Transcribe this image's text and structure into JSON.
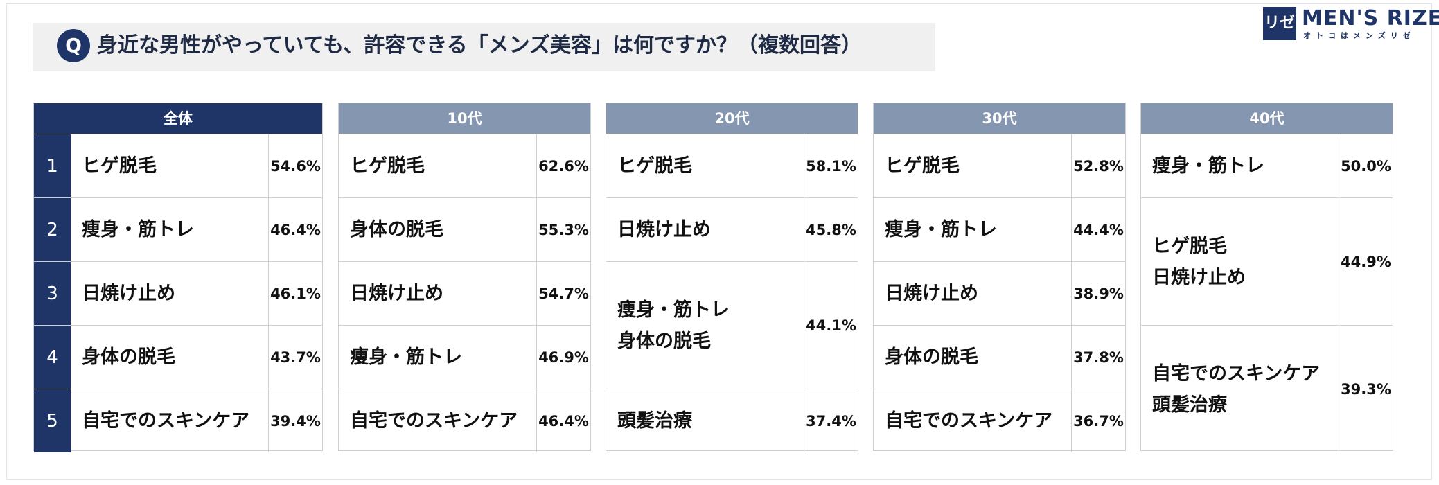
{
  "question": {
    "badge": "Q",
    "text": "身近な男性がやっていても、許容できる「メンズ美容」は何ですか？（複数回答）"
  },
  "logo": {
    "mark": "リゼ",
    "name": "MEN'S RIZE",
    "sub": "オトコはメンズリゼ"
  },
  "panels": [
    {
      "header": "全体",
      "rows": [
        {
          "rank": "1",
          "lines": [
            "ヒゲ脱毛"
          ],
          "pct": "54.6%"
        },
        {
          "rank": "2",
          "lines": [
            "痩身・筋トレ"
          ],
          "pct": "46.4%"
        },
        {
          "rank": "3",
          "lines": [
            "日焼け止め"
          ],
          "pct": "46.1%"
        },
        {
          "rank": "4",
          "lines": [
            "身体の脱毛"
          ],
          "pct": "43.7%"
        },
        {
          "rank": "5",
          "lines": [
            "自宅でのスキンケア"
          ],
          "pct": "39.4%"
        }
      ]
    },
    {
      "header": "10代",
      "rows": [
        {
          "lines": [
            "ヒゲ脱毛"
          ],
          "pct": "62.6%"
        },
        {
          "lines": [
            "身体の脱毛"
          ],
          "pct": "55.3%"
        },
        {
          "lines": [
            "日焼け止め"
          ],
          "pct": "54.7%"
        },
        {
          "lines": [
            "痩身・筋トレ"
          ],
          "pct": "46.9%"
        },
        {
          "lines": [
            "自宅でのスキンケア"
          ],
          "pct": "46.4%"
        }
      ]
    },
    {
      "header": "20代",
      "rows": [
        {
          "lines": [
            "ヒゲ脱毛"
          ],
          "pct": "58.1%"
        },
        {
          "lines": [
            "日焼け止め"
          ],
          "pct": "45.8%"
        },
        {
          "lines": [
            "痩身・筋トレ",
            "身体の脱毛"
          ],
          "pct": "44.1%"
        },
        {
          "lines": [
            "頭髪治療"
          ],
          "pct": "37.4%"
        }
      ]
    },
    {
      "header": "30代",
      "rows": [
        {
          "lines": [
            "ヒゲ脱毛"
          ],
          "pct": "52.8%"
        },
        {
          "lines": [
            "痩身・筋トレ"
          ],
          "pct": "44.4%"
        },
        {
          "lines": [
            "日焼け止め"
          ],
          "pct": "38.9%"
        },
        {
          "lines": [
            "身体の脱毛"
          ],
          "pct": "37.8%"
        },
        {
          "lines": [
            "自宅でのスキンケア"
          ],
          "pct": "36.7%"
        }
      ]
    },
    {
      "header": "40代",
      "rows": [
        {
          "lines": [
            "痩身・筋トレ"
          ],
          "pct": "50.0%"
        },
        {
          "lines": [
            "ヒゲ脱毛",
            "日焼け止め"
          ],
          "pct": "44.9%"
        },
        {
          "lines": [
            "自宅でのスキンケア",
            "頭髪治療"
          ],
          "pct": "39.3%"
        }
      ]
    }
  ]
}
